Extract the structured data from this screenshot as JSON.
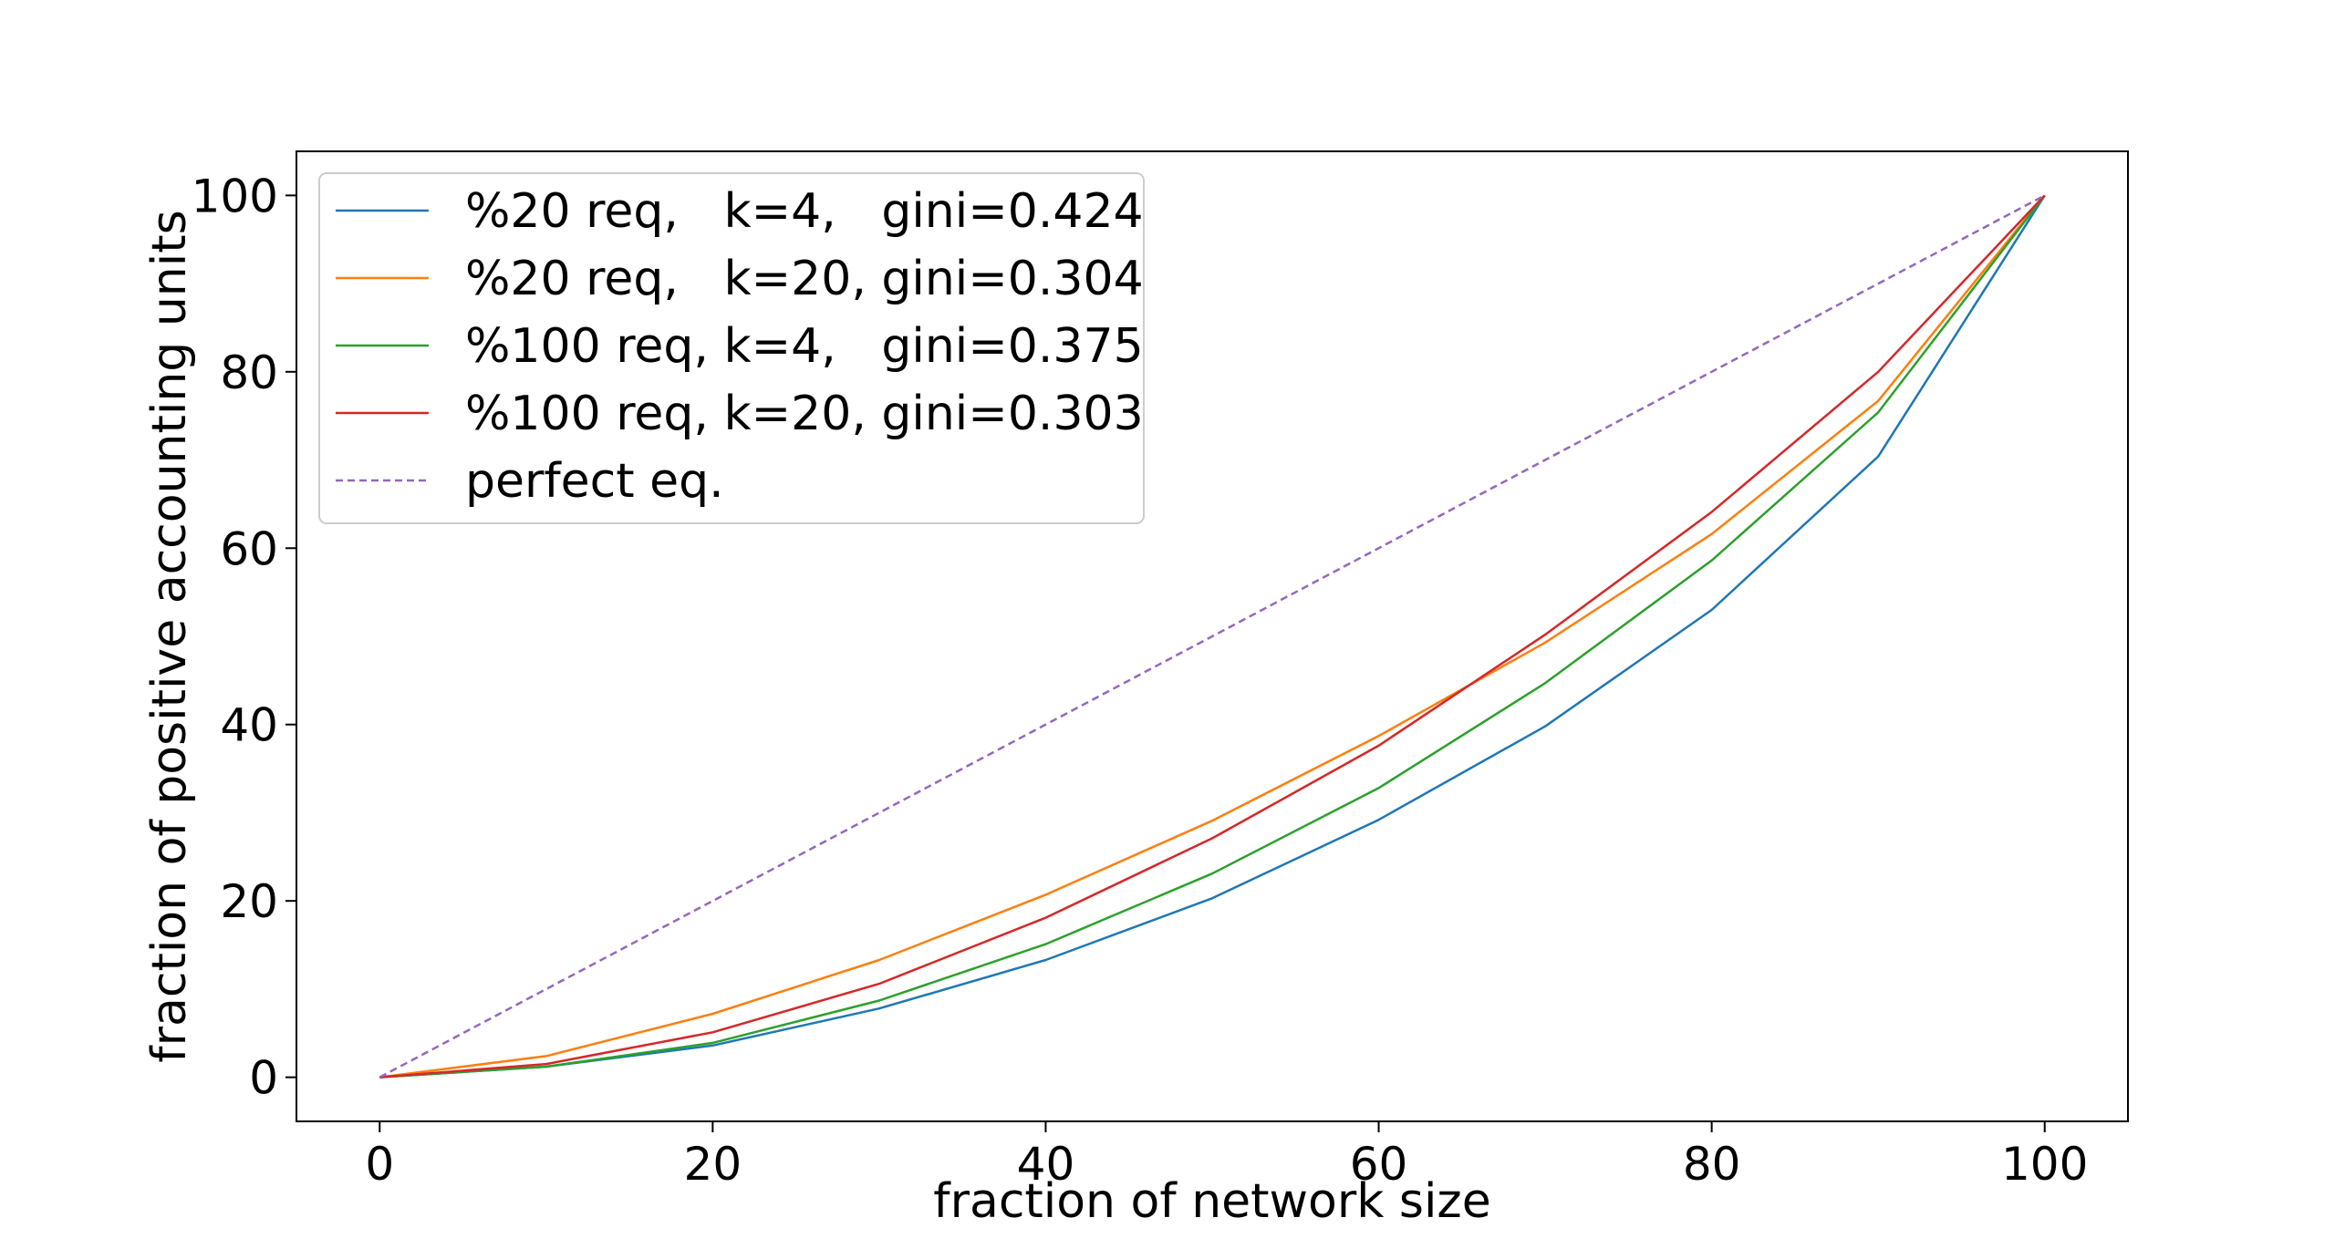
{
  "chart_data": {
    "type": "line",
    "title": "",
    "xlabel": "fraction of network size",
    "ylabel": "fraction of positive accounting units",
    "xlim": [
      -5,
      105
    ],
    "ylim": [
      -5,
      105
    ],
    "xticks": [
      0,
      20,
      40,
      60,
      80,
      100
    ],
    "yticks": [
      0,
      20,
      40,
      60,
      80,
      100
    ],
    "grid": false,
    "legend_position": "top-left",
    "x": [
      0,
      10,
      20,
      30,
      40,
      50,
      60,
      70,
      80,
      90,
      100
    ],
    "series": [
      {
        "name": "%20 req,   k=4,   gini=0.424",
        "color": "#1f77b4",
        "dashed": false,
        "values": [
          0,
          1.2,
          3.6,
          7.8,
          13.3,
          20.3,
          29.2,
          39.8,
          53.0,
          70.4,
          100
        ]
      },
      {
        "name": "%20 req,   k=20, gini=0.304",
        "color": "#ff7f0e",
        "dashed": false,
        "values": [
          0,
          2.4,
          7.2,
          13.3,
          20.7,
          29.1,
          38.7,
          49.3,
          61.6,
          76.7,
          100
        ]
      },
      {
        "name": "%100 req, k=4,   gini=0.375",
        "color": "#2ca02c",
        "dashed": false,
        "values": [
          0,
          1.2,
          3.9,
          8.7,
          15.1,
          23.1,
          32.8,
          44.7,
          58.6,
          75.4,
          100
        ]
      },
      {
        "name": "%100 req, k=20, gini=0.303",
        "color": "#d62728",
        "dashed": false,
        "values": [
          0,
          1.5,
          5.1,
          10.6,
          18.1,
          27.1,
          37.6,
          50.2,
          64.1,
          80.0,
          100
        ]
      },
      {
        "name": "perfect eq.",
        "color": "#9467bd",
        "dashed": true,
        "values": [
          0,
          10,
          20,
          30,
          40,
          50,
          60,
          70,
          80,
          90,
          100
        ]
      }
    ]
  }
}
